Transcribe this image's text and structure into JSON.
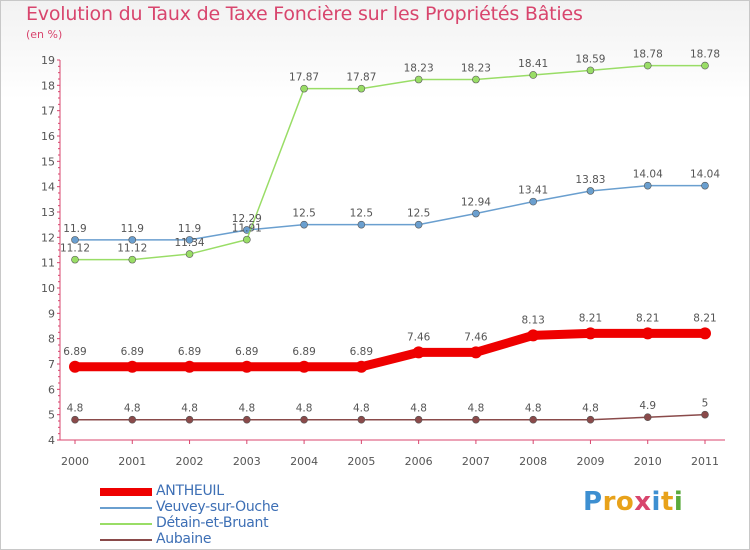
{
  "title": "Evolution du Taux de Taxe Foncière sur les Propriétés Bâties",
  "unit": "(en %)",
  "logo": {
    "text": "Proxiti",
    "letters": [
      "P",
      "r",
      "o",
      "x",
      "i",
      "t",
      "i"
    ],
    "colors": [
      "#3d8fd1",
      "#e8a21a",
      "#e8a21a",
      "#d8456d",
      "#3d8fd1",
      "#e8a21a",
      "#5aaa3c"
    ]
  },
  "chart_data": {
    "type": "line",
    "title": "Evolution du Taux de Taxe Foncière sur les Propriétés Bâties",
    "ylabel": "(en %)",
    "xlabel": "",
    "x": [
      "2000",
      "2001",
      "2002",
      "2003",
      "2004",
      "2005",
      "2006",
      "2007",
      "2008",
      "2009",
      "2010",
      "2011"
    ],
    "ylim": [
      4,
      19
    ],
    "yticks": [
      "4",
      "5",
      "6",
      "7",
      "8",
      "9",
      "10",
      "11",
      "12",
      "13",
      "14",
      "15",
      "16",
      "17",
      "18",
      "19"
    ],
    "grid": false,
    "legend_position": "bottom-left",
    "series": [
      {
        "name": "ANTHEUIL",
        "color": "#ee0000",
        "values": [
          6.89,
          6.89,
          6.89,
          6.89,
          6.89,
          6.89,
          7.46,
          7.46,
          8.13,
          8.21,
          8.21,
          8.21
        ],
        "labels": [
          "6.89",
          "6.89",
          "6.89",
          "6.89",
          "6.89",
          "6.89",
          "7.46",
          "7.46",
          "8.13",
          "8.21",
          "8.21",
          "8.21"
        ]
      },
      {
        "name": "Veuvey-sur-Ouche",
        "color": "#6a9fcf",
        "values": [
          11.9,
          11.9,
          11.9,
          12.29,
          12.5,
          12.5,
          12.5,
          12.94,
          13.41,
          13.83,
          14.04,
          14.04
        ],
        "labels": [
          "11.9",
          "11.9",
          "11.9",
          "12.29",
          "12.5",
          "12.5",
          "12.5",
          "12.94",
          "13.41",
          "13.83",
          "14.04",
          "14.04"
        ]
      },
      {
        "name": "Détain-et-Bruant",
        "color": "#99dd66",
        "values": [
          11.12,
          11.12,
          11.34,
          11.91,
          17.87,
          17.87,
          18.23,
          18.23,
          18.41,
          18.59,
          18.78,
          18.78
        ],
        "labels": [
          "11.12",
          "11.12",
          "11.34",
          "11.91",
          "17.87",
          "17.87",
          "18.23",
          "18.23",
          "18.41",
          "18.59",
          "18.78",
          "18.78"
        ]
      },
      {
        "name": "Aubaine",
        "color": "#8a4a4a",
        "values": [
          4.8,
          4.8,
          4.8,
          4.8,
          4.8,
          4.8,
          4.8,
          4.8,
          4.8,
          4.8,
          4.9,
          5
        ],
        "labels": [
          "4.8",
          "4.8",
          "4.8",
          "4.8",
          "4.8",
          "4.8",
          "4.8",
          "4.8",
          "4.8",
          "4.8",
          "4.9",
          "5"
        ]
      }
    ]
  }
}
